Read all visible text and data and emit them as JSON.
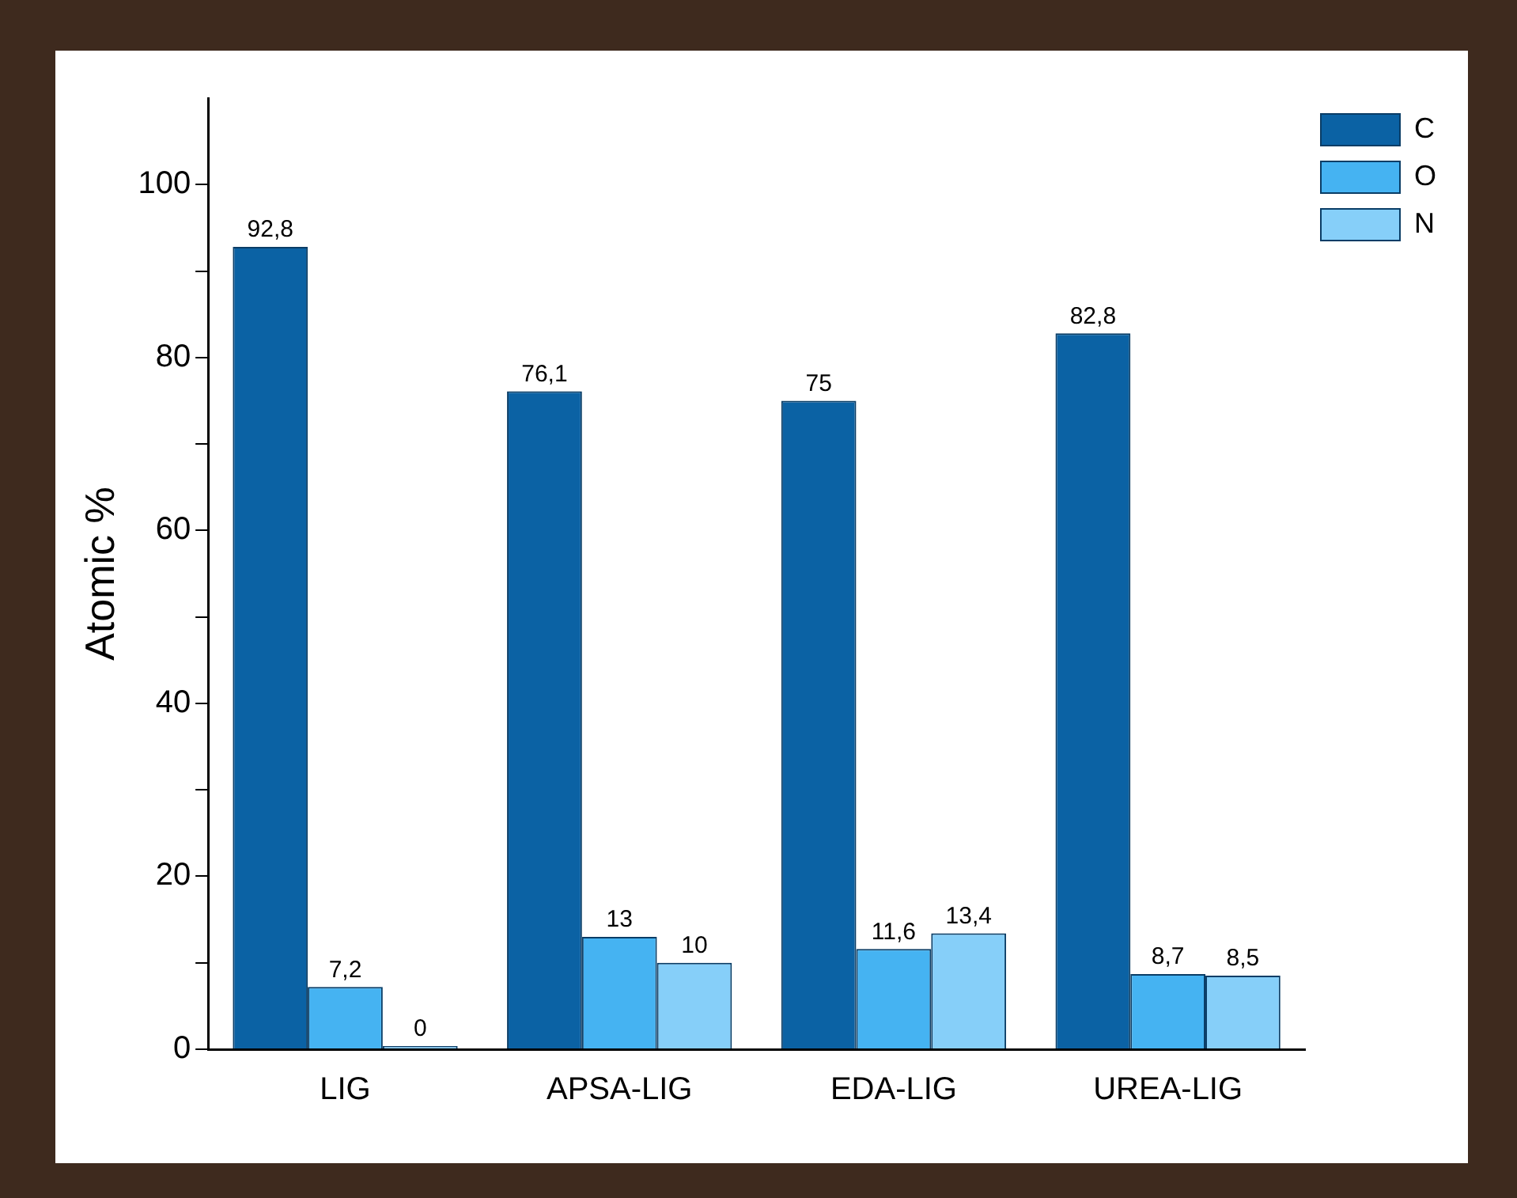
{
  "chart_data": {
    "type": "bar",
    "ylabel": "Atomic %",
    "categories": [
      "LIG",
      "APSA-LIG",
      "EDA-LIG",
      "UREA-LIG"
    ],
    "series": [
      {
        "name": "C",
        "color": "#0b62a4",
        "values": [
          92.8,
          76.1,
          75,
          82.8
        ],
        "value_labels": [
          "92,8",
          "76,1",
          "75",
          "82,8"
        ]
      },
      {
        "name": "O",
        "color": "#45b3f2",
        "values": [
          7.2,
          13,
          11.6,
          8.7
        ],
        "value_labels": [
          "7,2",
          "13",
          "11,6",
          "8,7"
        ]
      },
      {
        "name": "N",
        "color": "#86cff9",
        "values": [
          0,
          10,
          13.4,
          8.5
        ],
        "value_labels": [
          "0",
          "10",
          "13,4",
          "8,5"
        ]
      }
    ],
    "ylim": [
      0,
      110
    ],
    "yticks": [
      0,
      {
        "value": 10,
        "label": null
      },
      20,
      {
        "value": 30,
        "label": null
      },
      40,
      {
        "value": 50,
        "label": null
      },
      60,
      {
        "value": 70,
        "label": null
      },
      80,
      {
        "value": 90,
        "label": null
      },
      100
    ],
    "grid": false,
    "legend": "top right"
  }
}
